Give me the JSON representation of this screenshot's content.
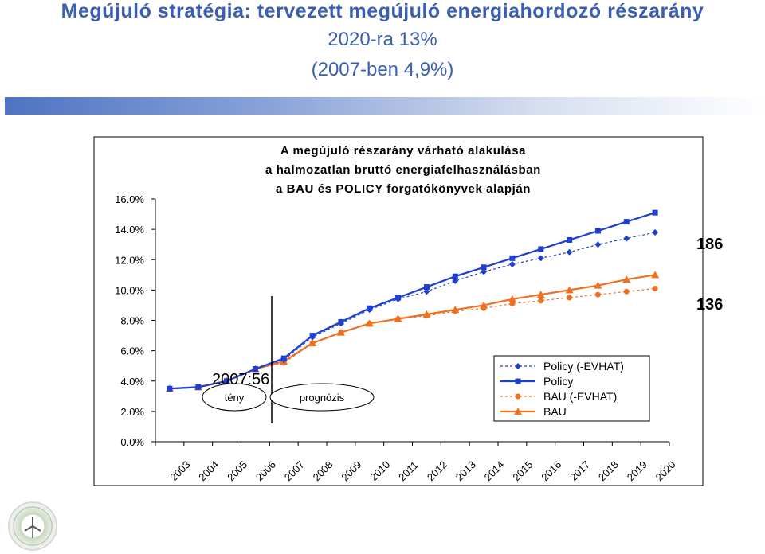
{
  "header": {
    "title_line1": "Megújuló stratégia: tervezett megújuló energiahordozó részarány",
    "title_line2": "2020-ra 13%",
    "title_line3": "(2007-ben 4,9%)"
  },
  "colors": {
    "header_text": "#3a5fb0",
    "policy": "#1f3fd0",
    "bau": "#f07020"
  },
  "logo_icon": "wind-turbine-seal-icon",
  "chart_data": {
    "type": "line",
    "title_lines": [
      "A megújuló részarány várható alakulása",
      "a halmozatlan bruttó energiafelhasználásban",
      "a BAU és POLICY forgatókönyvek alapján"
    ],
    "categories": [
      "2003",
      "2004",
      "2005",
      "2006",
      "2007",
      "2008",
      "2009",
      "2010",
      "2011",
      "2012",
      "2013",
      "2014",
      "2015",
      "2016",
      "2017",
      "2018",
      "2019",
      "2020"
    ],
    "ylim": [
      0,
      16
    ],
    "yticks": [
      0,
      2,
      4,
      6,
      8,
      10,
      12,
      14,
      16
    ],
    "ytick_labels": [
      "0.0%",
      "2.0%",
      "4.0%",
      "6.0%",
      "8.0%",
      "10.0%",
      "12.0%",
      "14.0%",
      "16.0%"
    ],
    "grid": false,
    "legend_position": "bottom-right inside plot",
    "series": [
      {
        "name": "Policy (-EVHAT)",
        "style": "dotted",
        "marker": "diamond",
        "color": "#1f3fd0",
        "values": [
          3.5,
          3.6,
          4.0,
          4.8,
          5.4,
          6.9,
          7.8,
          8.7,
          9.4,
          9.9,
          10.6,
          11.2,
          11.7,
          12.1,
          12.5,
          13.0,
          13.4,
          13.8
        ]
      },
      {
        "name": "Policy",
        "style": "solid",
        "marker": "square",
        "color": "#1f3fd0",
        "values": [
          3.5,
          3.6,
          4.0,
          4.8,
          5.5,
          7.0,
          7.9,
          8.8,
          9.5,
          10.2,
          10.9,
          11.5,
          12.1,
          12.7,
          13.3,
          13.9,
          14.5,
          15.1
        ]
      },
      {
        "name": "BAU (-EVHAT)",
        "style": "dotted",
        "marker": "circle",
        "color": "#f07020",
        "values": [
          3.5,
          3.6,
          4.0,
          4.8,
          5.2,
          6.5,
          7.2,
          7.8,
          8.1,
          8.3,
          8.6,
          8.8,
          9.1,
          9.3,
          9.5,
          9.7,
          9.9,
          10.1
        ]
      },
      {
        "name": "BAU",
        "style": "solid",
        "marker": "triangle",
        "color": "#f07020",
        "values": [
          3.5,
          3.6,
          4.0,
          4.8,
          5.3,
          6.5,
          7.2,
          7.8,
          8.1,
          8.4,
          8.7,
          9.0,
          9.4,
          9.7,
          10.0,
          10.3,
          10.7,
          11.0
        ]
      }
    ],
    "annotations": {
      "year_value": "2007:56",
      "left_label": "tény",
      "right_label": "prognózis",
      "right_value_upper": "186",
      "right_value_lower": "136"
    }
  }
}
